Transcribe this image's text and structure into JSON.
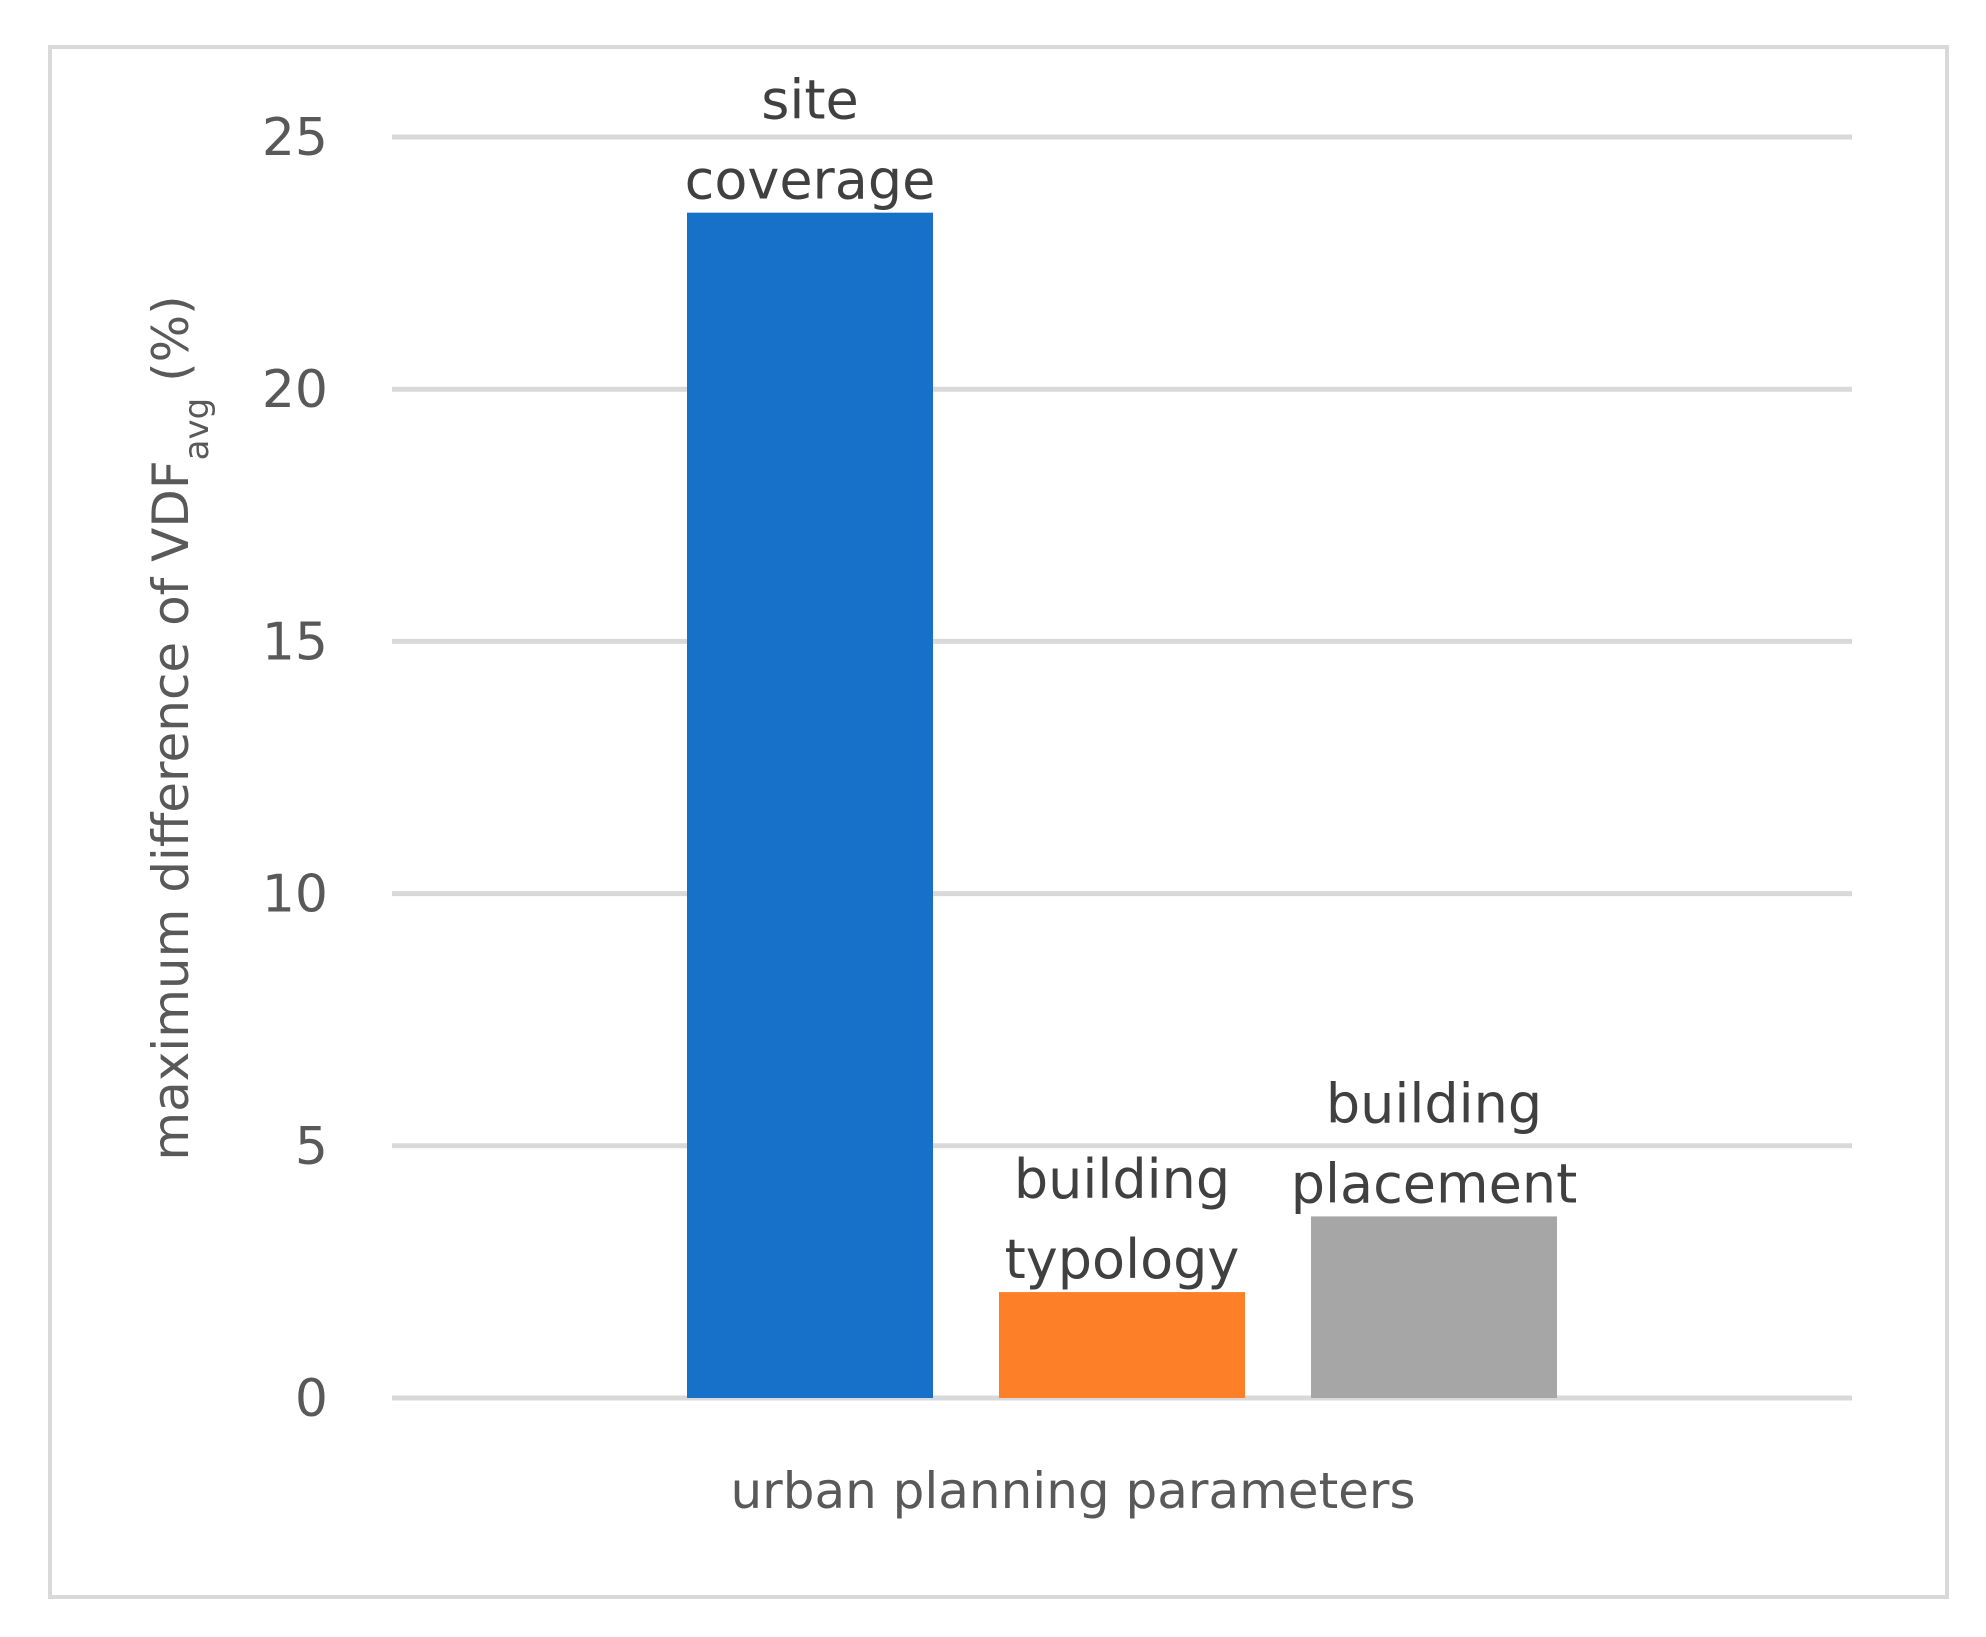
{
  "chart_data": {
    "type": "bar",
    "categories": [
      "site coverage",
      "building typology",
      "building placement"
    ],
    "values": [
      23.5,
      2.1,
      3.6
    ],
    "data_labels": [
      [
        "site",
        "coverage"
      ],
      [
        "building",
        "typology"
      ],
      [
        "building",
        "placement"
      ]
    ],
    "bar_colors": [
      "#1771c9",
      "#fd7f27",
      "#a6a6a6"
    ],
    "xlabel": "urban planning parameters",
    "ylabel_main": "maximum difference of VDF",
    "ylabel_sub": "avg",
    "ylabel_unit": " (%)",
    "ylim": [
      0,
      25
    ],
    "yticks": [
      0,
      5,
      10,
      15,
      20,
      25
    ],
    "yticks_labels": [
      "0",
      "5",
      "10",
      "15",
      "20",
      "25"
    ],
    "grid": true,
    "legend": "none"
  }
}
